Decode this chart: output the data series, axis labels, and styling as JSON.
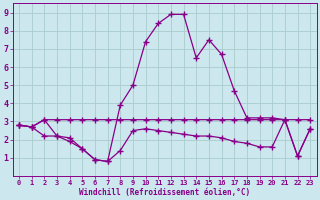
{
  "xlabel": "Windchill (Refroidissement éolien,°C)",
  "xlim": [
    -0.5,
    23.5
  ],
  "ylim": [
    0,
    9.5
  ],
  "xticks": [
    0,
    1,
    2,
    3,
    4,
    5,
    6,
    7,
    8,
    9,
    10,
    11,
    12,
    13,
    14,
    15,
    16,
    17,
    18,
    19,
    20,
    21,
    22,
    23
  ],
  "yticks": [
    1,
    2,
    3,
    4,
    5,
    6,
    7,
    8,
    9
  ],
  "bg_color": "#cce8ee",
  "grid_color": "#aacccc",
  "line_color": "#880088",
  "line_width": 0.9,
  "marker": "+",
  "marker_size": 5,
  "series": [
    {
      "x": [
        0,
        1,
        2,
        3,
        4,
        5,
        6,
        7,
        8,
        9,
        10,
        11,
        12,
        13,
        14,
        15,
        16,
        17,
        18,
        19,
        20,
        21,
        22,
        23
      ],
      "y": [
        2.8,
        2.7,
        3.1,
        3.1,
        3.1,
        3.1,
        3.1,
        3.1,
        3.1,
        3.1,
        3.1,
        3.1,
        3.1,
        3.1,
        3.1,
        3.1,
        3.1,
        3.1,
        3.1,
        3.1,
        3.1,
        3.1,
        3.1,
        3.1
      ]
    },
    {
      "x": [
        0,
        1,
        2,
        3,
        4,
        5,
        6,
        7,
        8,
        9,
        10,
        11,
        12,
        13,
        14,
        15,
        16,
        17,
        18,
        19,
        20,
        21,
        22,
        23
      ],
      "y": [
        2.8,
        2.7,
        3.1,
        2.2,
        2.1,
        1.5,
        0.9,
        0.8,
        3.9,
        5.0,
        7.4,
        8.4,
        8.9,
        8.9,
        6.5,
        7.5,
        6.7,
        4.7,
        3.2,
        3.2,
        3.2,
        3.1,
        1.1,
        2.6
      ]
    },
    {
      "x": [
        0,
        1,
        2,
        3,
        4,
        5,
        6,
        7,
        8,
        9,
        10,
        11,
        12,
        13,
        14,
        15,
        16,
        17,
        18,
        19,
        20,
        21,
        22,
        23
      ],
      "y": [
        2.8,
        2.7,
        2.2,
        2.2,
        1.9,
        1.5,
        0.9,
        0.8,
        1.4,
        2.5,
        2.6,
        2.5,
        2.4,
        2.3,
        2.2,
        2.2,
        2.1,
        1.9,
        1.8,
        1.6,
        1.6,
        3.1,
        1.1,
        2.6
      ]
    }
  ]
}
